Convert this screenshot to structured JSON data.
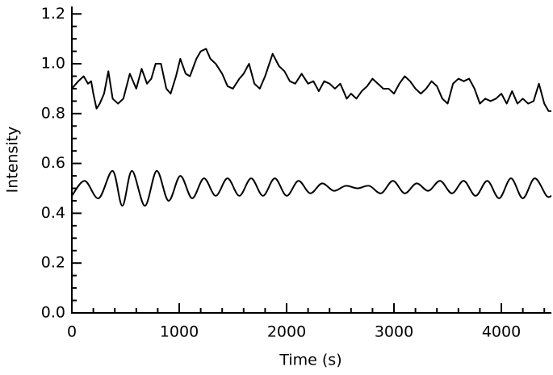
{
  "chart_data": {
    "type": "line",
    "xlabel": "Time (s)",
    "ylabel": "Intensity",
    "xlim": [
      0,
      4466
    ],
    "ylim": [
      0,
      1.23
    ],
    "xticks": [
      0,
      1000,
      2000,
      3000,
      4000
    ],
    "yticks": [
      {
        "value": 0,
        "label": "0.0"
      },
      0.2,
      0.4,
      0.6,
      0.8,
      {
        "value": 1,
        "label": "1.0"
      },
      1.2
    ],
    "xminorticks": [
      200,
      400,
      600,
      800,
      1200,
      1400,
      1600,
      1800,
      2200,
      2400,
      2600,
      2800,
      3200,
      3400,
      3600,
      3800,
      4200,
      4400
    ],
    "yminorticks": [
      0.05,
      0.1,
      0.15,
      0.25,
      0.3,
      0.35,
      0.45,
      0.5,
      0.55,
      0.65,
      0.7,
      0.75,
      0.85,
      0.9,
      0.95,
      1.05,
      1.1,
      1.15
    ],
    "series": [
      {
        "color": "#000000",
        "smooth": false,
        "x": [
          0,
          60,
          110,
          150,
          180,
          200,
          230,
          260,
          300,
          340,
          380,
          430,
          480,
          540,
          600,
          650,
          700,
          740,
          780,
          830,
          880,
          920,
          970,
          1010,
          1060,
          1100,
          1160,
          1200,
          1250,
          1290,
          1340,
          1400,
          1450,
          1500,
          1560,
          1600,
          1650,
          1700,
          1750,
          1800,
          1870,
          1930,
          1980,
          2030,
          2080,
          2140,
          2200,
          2250,
          2300,
          2350,
          2400,
          2450,
          2500,
          2560,
          2600,
          2650,
          2700,
          2750,
          2800,
          2850,
          2900,
          2950,
          3000,
          3050,
          3100,
          3150,
          3200,
          3250,
          3300,
          3350,
          3400,
          3450,
          3500,
          3550,
          3600,
          3650,
          3700,
          3750,
          3800,
          3850,
          3900,
          3950,
          4000,
          4050,
          4100,
          4150,
          4200,
          4250,
          4300,
          4350,
          4400,
          4440,
          4466
        ],
        "values": [
          0.9,
          0.93,
          0.95,
          0.92,
          0.93,
          0.88,
          0.82,
          0.84,
          0.88,
          0.97,
          0.86,
          0.84,
          0.86,
          0.96,
          0.9,
          0.98,
          0.92,
          0.94,
          1.0,
          1.0,
          0.9,
          0.88,
          0.95,
          1.02,
          0.96,
          0.95,
          1.02,
          1.05,
          1.06,
          1.02,
          1.0,
          0.96,
          0.91,
          0.9,
          0.94,
          0.96,
          1.0,
          0.92,
          0.9,
          0.95,
          1.04,
          0.99,
          0.97,
          0.93,
          0.92,
          0.96,
          0.92,
          0.93,
          0.89,
          0.93,
          0.92,
          0.9,
          0.92,
          0.86,
          0.88,
          0.86,
          0.89,
          0.91,
          0.94,
          0.92,
          0.9,
          0.9,
          0.88,
          0.92,
          0.95,
          0.93,
          0.9,
          0.88,
          0.9,
          0.93,
          0.91,
          0.86,
          0.84,
          0.92,
          0.94,
          0.93,
          0.94,
          0.9,
          0.84,
          0.86,
          0.85,
          0.86,
          0.88,
          0.84,
          0.89,
          0.84,
          0.86,
          0.84,
          0.85,
          0.92,
          0.84,
          0.81,
          0.81
        ]
      },
      {
        "color": "#000000",
        "smooth": true,
        "x": [
          0,
          120,
          250,
          380,
          470,
          560,
          680,
          790,
          900,
          1010,
          1120,
          1230,
          1340,
          1450,
          1560,
          1670,
          1780,
          1890,
          2000,
          2110,
          2220,
          2330,
          2440,
          2550,
          2660,
          2770,
          2880,
          2990,
          3100,
          3210,
          3320,
          3430,
          3540,
          3650,
          3760,
          3870,
          3980,
          4090,
          4200,
          4310,
          4420,
          4466
        ],
        "values": [
          0.47,
          0.53,
          0.46,
          0.57,
          0.43,
          0.57,
          0.43,
          0.57,
          0.45,
          0.55,
          0.46,
          0.54,
          0.47,
          0.54,
          0.47,
          0.54,
          0.47,
          0.54,
          0.47,
          0.53,
          0.48,
          0.52,
          0.49,
          0.51,
          0.5,
          0.51,
          0.48,
          0.53,
          0.48,
          0.52,
          0.49,
          0.53,
          0.48,
          0.53,
          0.47,
          0.53,
          0.46,
          0.54,
          0.46,
          0.54,
          0.47,
          0.47
        ]
      }
    ]
  }
}
